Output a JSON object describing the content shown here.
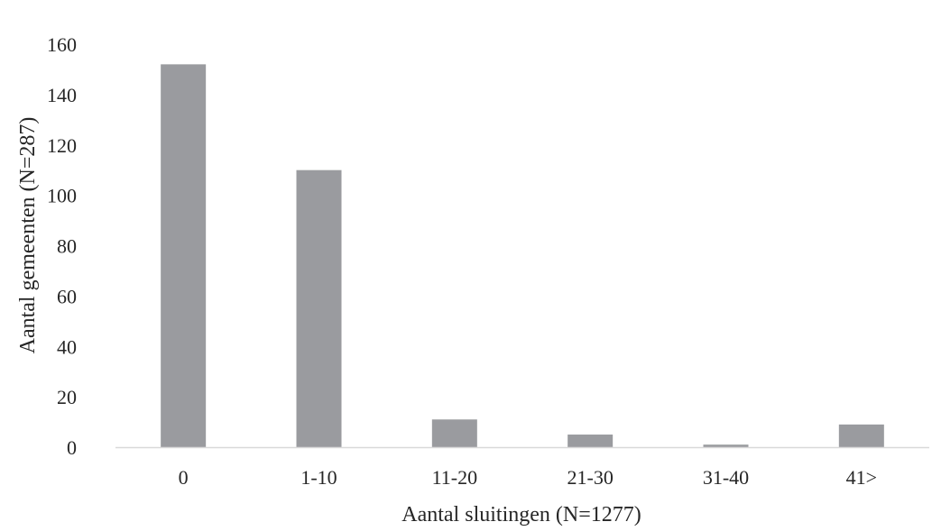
{
  "chart_data": {
    "type": "bar",
    "categories": [
      "0",
      "1-10",
      "11-20",
      "21-30",
      "31-40",
      "41>"
    ],
    "values": [
      152,
      110,
      11,
      5,
      1,
      9
    ],
    "xlabel": "Aantal sluitingen (N=1277)",
    "ylabel": "Aantal gemeenten (N=287)",
    "ylim": [
      0,
      160
    ],
    "yticks": [
      0,
      20,
      40,
      60,
      80,
      100,
      120,
      140,
      160
    ],
    "grid": false,
    "legend": "none",
    "bar_color": "#9a9b9f",
    "axis_color": "#d9d9d9"
  }
}
